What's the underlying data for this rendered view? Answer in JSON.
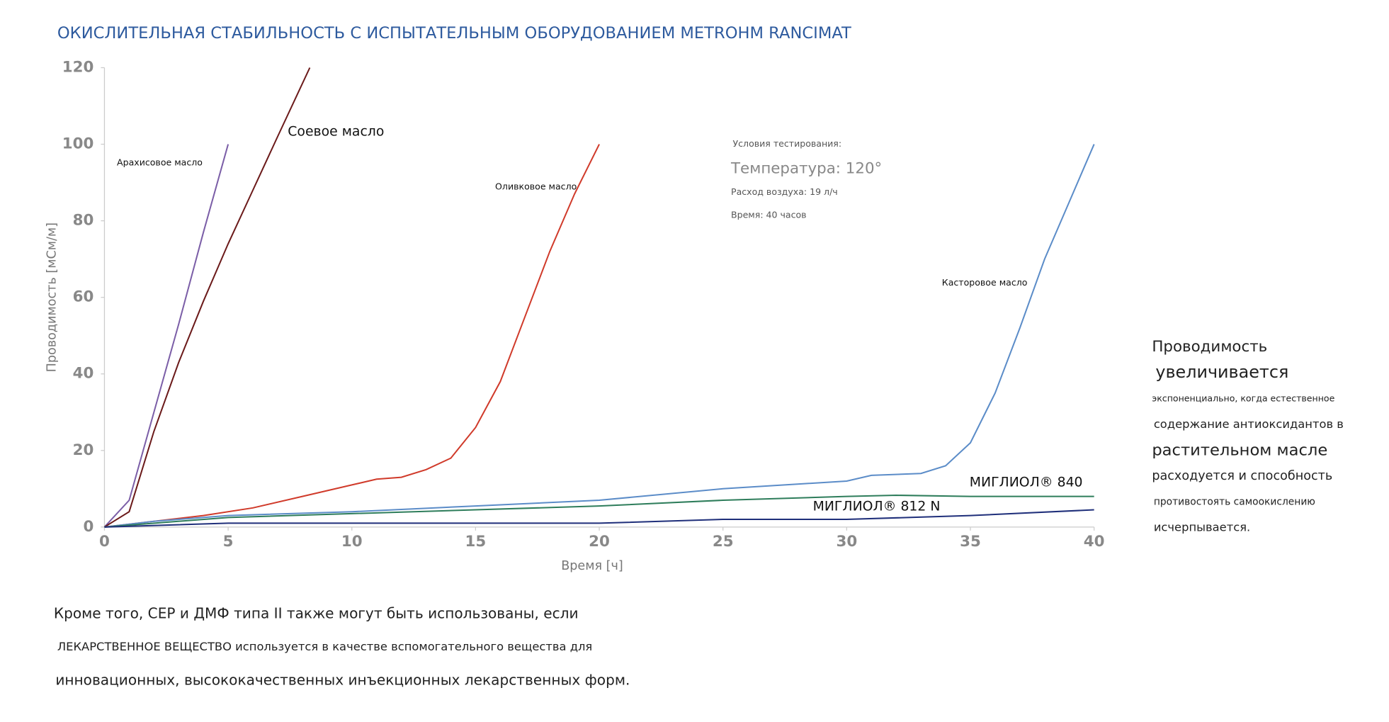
{
  "chart_data": {
    "type": "line",
    "title": "ОКИСЛИТЕЛЬНАЯ СТАБИЛЬНОСТЬ С ИСПЫТАТЕЛЬНЫМ ОБОРУДОВАНИЕМ METROHM RANCIMAT",
    "x_label": "Время [ч]",
    "y_label": "Проводимость [мСм/м]",
    "xlim": [
      0,
      40
    ],
    "xticks": [
      0,
      5,
      10,
      15,
      20,
      25,
      30,
      35,
      40
    ],
    "ylim": [
      0,
      120
    ],
    "yticks": [
      0,
      20,
      40,
      60,
      80,
      100,
      120
    ],
    "series": [
      {
        "name": "Арахисовое масло",
        "color": "#7b5ea7",
        "x": [
          0,
          1,
          2,
          3,
          4,
          5
        ],
        "values": [
          0,
          7,
          30,
          53,
          77,
          100
        ]
      },
      {
        "name": "Соевое масло",
        "color": "#6b1a1a",
        "x": [
          0,
          1,
          2,
          3,
          4,
          5,
          6,
          7,
          8.3
        ],
        "values": [
          0,
          4,
          25,
          43,
          59,
          74,
          88,
          102,
          120
        ]
      },
      {
        "name": "Оливковое масло",
        "color": "#d03a2a",
        "x": [
          0,
          4,
          6,
          8,
          10,
          11,
          12,
          13,
          14,
          15,
          16,
          17,
          18,
          19,
          20
        ],
        "values": [
          0,
          3,
          5,
          8,
          11,
          12.5,
          13,
          15,
          18,
          26,
          38,
          55,
          72,
          87,
          100
        ]
      },
      {
        "name": "Касторовое масло",
        "color": "#5b8cc8",
        "x": [
          0,
          2,
          5,
          10,
          15,
          20,
          25,
          30,
          31,
          33,
          34,
          35,
          36,
          37,
          38,
          39,
          40
        ],
        "values": [
          0,
          1.5,
          3,
          4,
          5.5,
          7,
          10,
          12,
          13.5,
          14,
          16,
          22,
          35,
          52,
          70,
          85,
          100
        ]
      },
      {
        "name": "МИГЛИОЛ® 840",
        "color": "#2e7d5b",
        "x": [
          0,
          5,
          10,
          15,
          20,
          25,
          30,
          32,
          35,
          40
        ],
        "values": [
          0,
          2.5,
          3.5,
          4.5,
          5.5,
          7,
          8,
          8.3,
          8,
          8
        ]
      },
      {
        "name": "МИГЛИОЛ® 812 N",
        "color": "#1f2f7a",
        "x": [
          0,
          5,
          10,
          20,
          25,
          30,
          35,
          40
        ],
        "values": [
          0,
          1,
          1,
          1,
          2,
          2,
          3,
          4.5
        ]
      }
    ],
    "conditions": [
      "Условия тестирования:",
      "Температура: 120°",
      "Расход воздуха: 19 л/ч",
      "Время: 40 часов"
    ],
    "side_text": [
      "Проводимость",
      "увеличивается",
      "экспоненциально, когда естественное",
      "содержание антиоксидантов в",
      "растительном масле",
      "расходуется и способность",
      "противостоять самоокислению",
      "исчерпывается."
    ],
    "bottom_text": [
      "Кроме того, СЕР и ДМФ типа II также могут быть использованы, если",
      "ЛЕКАРСТВЕННОЕ ВЕЩЕСТВО используется в качестве вспомогательного вещества для",
      "инновационных, высококачественных инъекционных лекарственных форм."
    ]
  }
}
